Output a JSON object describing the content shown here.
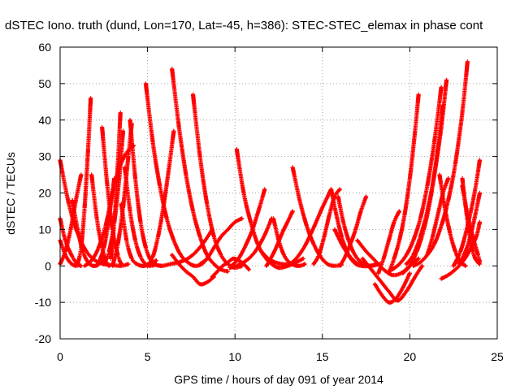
{
  "chart_data": {
    "type": "scatter",
    "title": "dSTEC Iono. truth (dund, Lon=170, Lat=-45, h=386): STEC-STEC_elemax in phase cont",
    "xlabel": "GPS time / hours of day 091 of year 2014",
    "ylabel": "dSTEC  / TECUs",
    "xlim": [
      0,
      25
    ],
    "ylim": [
      -20,
      60
    ],
    "xticks": [
      0,
      5,
      10,
      15,
      20,
      25
    ],
    "yticks": [
      -20,
      -10,
      0,
      10,
      20,
      30,
      40,
      50,
      60
    ],
    "grid": true,
    "legend": "none",
    "marker": "plus",
    "color": "#ff0000",
    "series": [
      {
        "x": [
          0.0,
          0.5,
          1.0,
          1.5,
          2.0,
          2.5,
          3.0,
          3.5,
          3.9
        ],
        "y": [
          29.0,
          17.0,
          9.0,
          4.0,
          1.5,
          0.5,
          0.2,
          0.0,
          0.5
        ]
      },
      {
        "x": [
          0.0,
          0.3,
          0.7,
          1.0,
          1.2
        ],
        "y": [
          13.0,
          7.0,
          2.5,
          0.5,
          0.0
        ]
      },
      {
        "x": [
          0.0,
          0.3,
          0.6,
          0.9,
          1.1
        ],
        "y": [
          7.0,
          3.0,
          0.8,
          0.0,
          0.3
        ]
      },
      {
        "x": [
          0.0,
          0.3,
          0.6,
          0.9,
          1.2
        ],
        "y": [
          0.5,
          4.0,
          10.0,
          18.0,
          25.0
        ]
      },
      {
        "x": [
          0.7,
          1.0,
          1.3,
          1.6,
          1.9,
          2.2,
          2.5
        ],
        "y": [
          18.0,
          10.0,
          4.0,
          1.0,
          0.0,
          0.5,
          2.0
        ]
      },
      {
        "x": [
          1.0,
          1.2,
          1.4,
          1.6,
          1.75
        ],
        "y": [
          0.5,
          5.0,
          16.0,
          32.0,
          46.0
        ]
      },
      {
        "x": [
          1.4,
          1.8,
          2.2,
          2.6,
          3.0,
          3.4,
          3.8,
          4.2
        ],
        "y": [
          0.0,
          1.5,
          5.0,
          11.0,
          20.0,
          27.0,
          31.0,
          33.0
        ]
      },
      {
        "x": [
          1.8,
          2.1,
          2.4,
          2.6,
          2.8
        ],
        "y": [
          25.0,
          13.0,
          5.0,
          1.5,
          0.0
        ]
      },
      {
        "x": [
          2.4,
          2.7,
          3.0,
          3.3,
          3.5
        ],
        "y": [
          38.0,
          22.0,
          10.0,
          3.0,
          0.5
        ]
      },
      {
        "x": [
          2.1,
          2.3,
          2.5,
          2.7,
          2.9,
          3.1
        ],
        "y": [
          0.0,
          2.0,
          5.0,
          10.0,
          17.0,
          24.0
        ]
      },
      {
        "x": [
          2.5,
          2.8,
          3.1,
          3.4,
          3.6
        ],
        "y": [
          0.5,
          4.0,
          12.0,
          25.0,
          37.0
        ]
      },
      {
        "x": [
          2.9,
          3.1,
          3.3,
          3.45
        ],
        "y": [
          2.0,
          12.0,
          28.0,
          42.0
        ]
      },
      {
        "x": [
          3.5,
          3.8,
          4.1,
          4.4,
          4.7,
          5.0,
          5.3,
          5.5
        ],
        "y": [
          17.0,
          7.0,
          2.0,
          0.5,
          0.0,
          0.2,
          0.8,
          1.5
        ]
      },
      {
        "x": [
          3.7,
          4.0,
          4.3,
          4.6,
          4.9,
          5.2,
          5.4
        ],
        "y": [
          27.0,
          15.0,
          7.0,
          2.5,
          0.5,
          0.0,
          0.3
        ]
      },
      {
        "x": [
          4.0,
          4.3,
          4.6,
          4.9,
          5.2,
          5.5,
          5.8
        ],
        "y": [
          40.0,
          24.0,
          12.0,
          5.0,
          1.5,
          0.3,
          0.0
        ]
      },
      {
        "x": [
          3.0,
          3.3,
          3.6,
          3.9,
          4.1
        ],
        "y": [
          0.0,
          6.0,
          16.0,
          30.0,
          39.0
        ]
      },
      {
        "x": [
          4.9,
          5.3,
          5.7,
          6.1,
          6.5,
          6.9,
          7.3,
          7.7,
          8.1,
          8.4
        ],
        "y": [
          50.0,
          34.0,
          22.0,
          13.0,
          7.0,
          3.0,
          1.0,
          0.0,
          0.5,
          2.0
        ]
      },
      {
        "x": [
          5.0,
          5.3,
          5.6,
          5.9,
          6.2,
          6.5
        ],
        "y": [
          0.0,
          2.5,
          8.0,
          16.0,
          26.0,
          37.0
        ]
      },
      {
        "x": [
          6.4,
          6.8,
          7.2,
          7.6,
          8.0,
          8.4,
          8.8,
          9.2,
          9.6
        ],
        "y": [
          54.0,
          38.0,
          25.0,
          15.0,
          8.0,
          3.0,
          0.5,
          -1.0,
          -1.5
        ]
      },
      {
        "x": [
          5.3,
          5.8,
          6.3,
          6.8,
          7.3,
          7.8,
          8.3,
          8.7
        ],
        "y": [
          0.5,
          0.0,
          0.5,
          1.0,
          2.0,
          4.0,
          7.0,
          10.0
        ]
      },
      {
        "x": [
          6.4,
          6.8,
          7.2,
          7.6,
          8.0,
          8.4,
          8.8
        ],
        "y": [
          3.0,
          0.5,
          -1.5,
          -3.0,
          -5.0,
          -4.5,
          -3.0
        ]
      },
      {
        "x": [
          7.6,
          8.0,
          8.4,
          8.8,
          9.2,
          9.6,
          10.0,
          10.4
        ],
        "y": [
          47.0,
          30.0,
          17.0,
          8.0,
          3.0,
          0.5,
          -0.5,
          0.0
        ]
      },
      {
        "x": [
          8.0,
          8.4,
          8.8,
          9.2,
          9.6,
          10.0,
          10.4
        ],
        "y": [
          0.5,
          2.0,
          5.0,
          8.0,
          10.0,
          12.0,
          13.0
        ]
      },
      {
        "x": [
          8.7,
          9.0,
          9.3,
          9.6,
          9.9,
          10.2,
          10.5,
          10.8
        ],
        "y": [
          -3.0,
          -1.5,
          0.0,
          1.0,
          2.0,
          1.5,
          0.5,
          -1.0
        ]
      },
      {
        "x": [
          10.1,
          10.5,
          10.9,
          11.3,
          11.7,
          12.1,
          12.5,
          12.9,
          13.3
        ],
        "y": [
          32.0,
          20.0,
          12.0,
          6.0,
          2.5,
          0.5,
          -0.5,
          -0.2,
          0.5
        ]
      },
      {
        "x": [
          9.8,
          10.2,
          10.6,
          11.0,
          11.4,
          11.7
        ],
        "y": [
          0.0,
          2.0,
          5.5,
          10.0,
          16.0,
          21.0
        ]
      },
      {
        "x": [
          9.7,
          10.1,
          10.5,
          10.9,
          11.3,
          11.7,
          12.1
        ],
        "y": [
          -0.5,
          0.0,
          1.0,
          2.5,
          5.0,
          8.5,
          13.0
        ]
      },
      {
        "x": [
          11.5,
          11.9,
          12.3,
          12.7,
          13.1,
          13.5,
          13.9
        ],
        "y": [
          4.0,
          2.0,
          1.0,
          0.5,
          0.5,
          1.0,
          2.0
        ]
      },
      {
        "x": [
          12.2,
          12.5,
          12.8,
          13.1,
          13.4,
          13.7,
          14.0
        ],
        "y": [
          13.0,
          7.0,
          3.0,
          1.0,
          0.2,
          0.0,
          0.5
        ]
      },
      {
        "x": [
          11.8,
          12.1,
          12.4,
          12.7,
          13.0,
          13.3
        ],
        "y": [
          0.0,
          2.5,
          5.5,
          9.0,
          12.0,
          15.0
        ]
      },
      {
        "x": [
          13.3,
          13.7,
          14.1,
          14.5,
          14.9,
          15.3,
          15.7,
          16.1
        ],
        "y": [
          27.0,
          18.0,
          11.0,
          6.0,
          2.5,
          0.5,
          0.0,
          0.3
        ]
      },
      {
        "x": [
          13.0,
          13.5,
          14.0,
          14.5,
          15.0,
          15.5
        ],
        "y": [
          0.0,
          2.0,
          5.5,
          10.5,
          16.0,
          21.0
        ]
      },
      {
        "x": [
          14.5,
          14.8,
          15.1,
          15.4,
          15.7,
          16.0
        ],
        "y": [
          0.5,
          3.0,
          8.0,
          14.0,
          19.0,
          21.0
        ]
      },
      {
        "x": [
          15.5,
          15.8,
          16.1,
          16.4,
          16.7,
          17.0,
          17.3
        ],
        "y": [
          21.0,
          14.0,
          8.0,
          4.0,
          1.5,
          0.3,
          0.0
        ]
      },
      {
        "x": [
          15.9,
          16.2,
          16.5,
          16.8,
          17.1,
          17.4,
          17.7,
          18.0,
          18.3
        ],
        "y": [
          19.0,
          12.0,
          7.0,
          3.5,
          1.5,
          0.5,
          0.0,
          0.2,
          0.5
        ]
      },
      {
        "x": [
          16.0,
          16.3,
          16.6,
          16.9,
          17.2,
          17.5
        ],
        "y": [
          0.0,
          2.5,
          6.0,
          10.0,
          15.0,
          19.0
        ]
      },
      {
        "x": [
          15.7,
          16.1,
          16.5,
          16.9,
          17.3,
          17.7,
          18.1
        ],
        "y": [
          10.0,
          6.0,
          3.0,
          1.0,
          0.0,
          0.0,
          0.5
        ]
      },
      {
        "x": [
          17.0,
          17.5,
          18.0,
          18.5,
          19.0,
          19.5,
          20.0,
          20.5
        ],
        "y": [
          7.0,
          4.0,
          1.5,
          -1.0,
          -2.5,
          -2.0,
          0.0,
          2.0
        ]
      },
      {
        "x": [
          17.3,
          17.8,
          18.3,
          18.8,
          19.3,
          19.8,
          20.3,
          20.7
        ],
        "y": [
          2.0,
          -1.0,
          -4.0,
          -7.0,
          -9.5,
          -7.0,
          -3.0,
          0.0
        ]
      },
      {
        "x": [
          18.0,
          18.4,
          18.8,
          19.2,
          19.6,
          20.0
        ],
        "y": [
          -5.0,
          -8.0,
          -10.0,
          -9.0,
          -6.0,
          -2.0
        ]
      },
      {
        "x": [
          18.2,
          18.5,
          18.8,
          19.1,
          19.4
        ],
        "y": [
          -2.0,
          2.0,
          7.0,
          12.0,
          15.0
        ]
      },
      {
        "x": [
          18.8,
          19.1,
          19.4,
          19.7,
          20.0,
          20.3,
          20.5
        ],
        "y": [
          -2.0,
          2.0,
          7.0,
          14.0,
          24.0,
          37.0,
          47.0
        ]
      },
      {
        "x": [
          19.0,
          19.4,
          19.8,
          20.2,
          20.6,
          21.0,
          21.4,
          21.8
        ],
        "y": [
          -1.0,
          0.5,
          3.0,
          7.0,
          13.0,
          22.0,
          34.0,
          49.0
        ]
      },
      {
        "x": [
          19.6,
          20.0,
          20.4,
          20.8,
          21.2,
          21.6,
          21.9
        ],
        "y": [
          -2.0,
          0.0,
          4.0,
          10.0,
          19.0,
          32.0,
          44.0
        ]
      },
      {
        "x": [
          19.8,
          20.2,
          20.6,
          21.0,
          21.4,
          21.8,
          22.1
        ],
        "y": [
          0.5,
          3.0,
          8.0,
          15.0,
          25.0,
          38.0,
          51.0
        ]
      },
      {
        "x": [
          20.2,
          20.6,
          21.0,
          21.4,
          21.8,
          22.2,
          22.6,
          23.0,
          23.3
        ],
        "y": [
          0.0,
          1.0,
          3.0,
          6.0,
          11.0,
          18.0,
          28.0,
          42.0,
          56.0
        ]
      },
      {
        "x": [
          21.0,
          21.3,
          21.6,
          21.9,
          22.2
        ],
        "y": [
          3.0,
          8.0,
          14.0,
          20.0,
          24.0
        ]
      },
      {
        "x": [
          21.7,
          22.0,
          22.3,
          22.6,
          22.9,
          23.2
        ],
        "y": [
          25.0,
          16.0,
          9.0,
          4.0,
          1.0,
          0.0
        ]
      },
      {
        "x": [
          23.0,
          23.2,
          23.4,
          23.6,
          23.8,
          24.0
        ],
        "y": [
          24.0,
          16.0,
          9.0,
          4.0,
          1.5,
          0.5
        ]
      },
      {
        "x": [
          23.0,
          23.3,
          23.6,
          23.9,
          24.0
        ],
        "y": [
          22.0,
          14.0,
          8.0,
          3.0,
          1.0
        ]
      },
      {
        "x": [
          21.8,
          22.2,
          22.6,
          23.0,
          23.4,
          23.8,
          24.0
        ],
        "y": [
          -3.5,
          -2.5,
          -1.0,
          1.0,
          4.0,
          8.0,
          12.0
        ]
      },
      {
        "x": [
          22.5,
          22.9,
          23.3,
          23.7,
          24.0
        ],
        "y": [
          0.0,
          4.0,
          11.0,
          20.0,
          29.0
        ]
      },
      {
        "x": [
          22.8,
          23.1,
          23.4,
          23.7,
          24.0
        ],
        "y": [
          0.5,
          3.0,
          7.0,
          13.0,
          20.0
        ]
      }
    ]
  }
}
